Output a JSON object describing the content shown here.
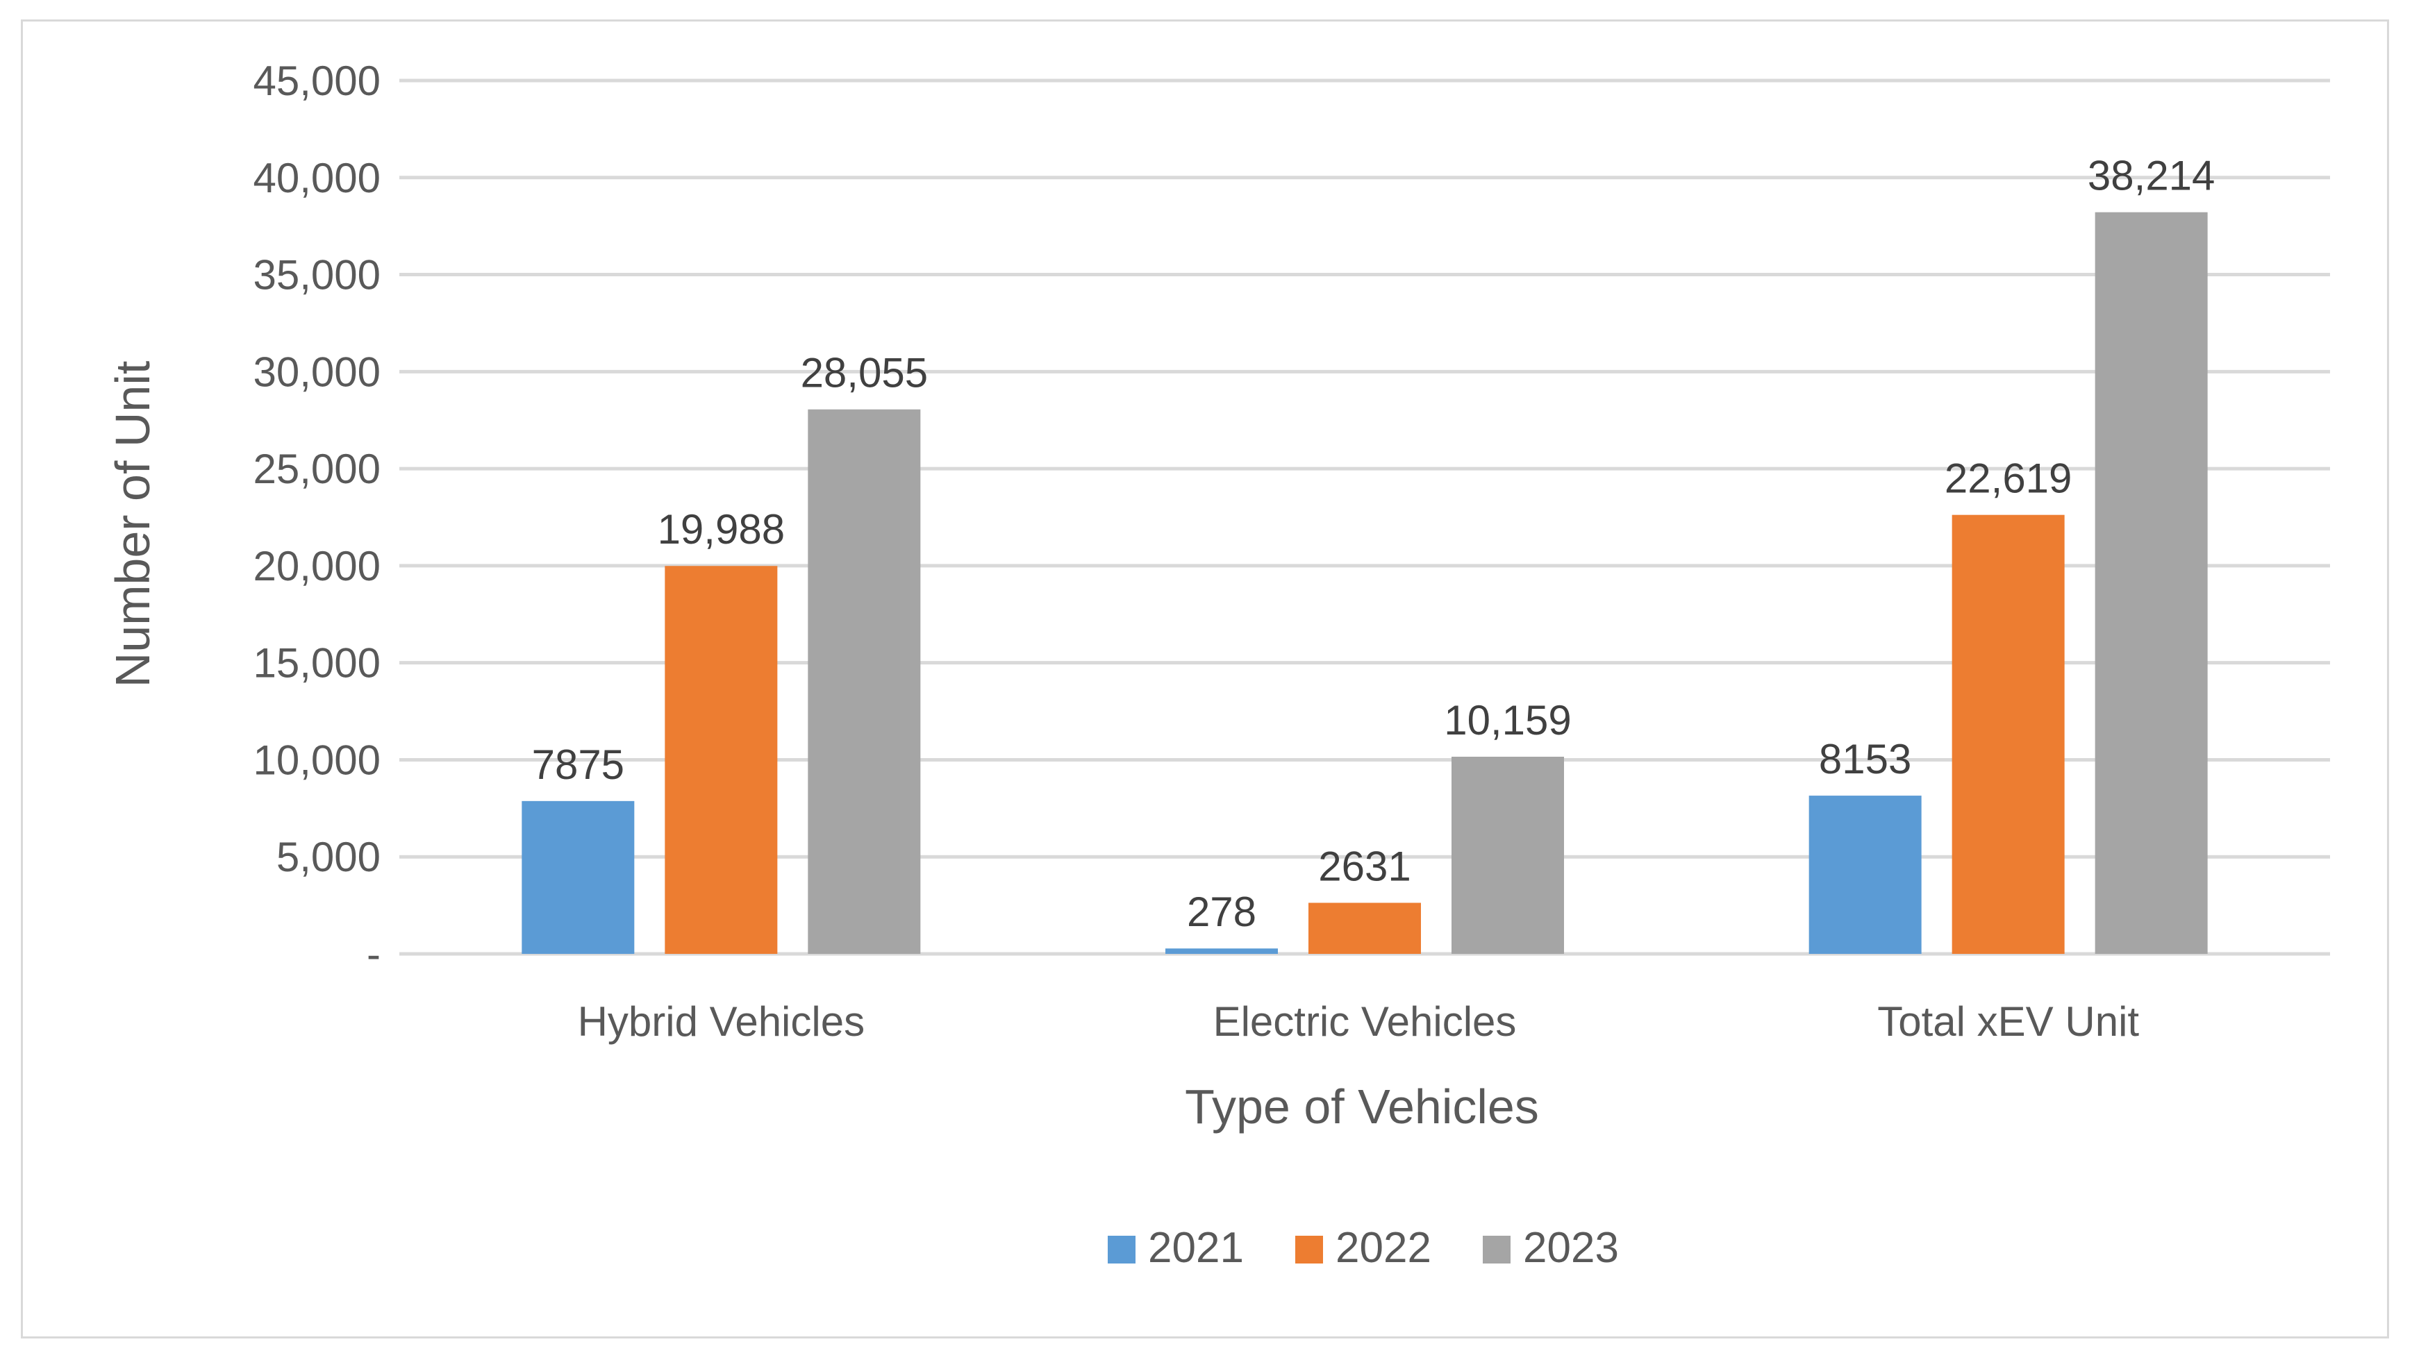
{
  "chart_data": {
    "type": "bar",
    "title": "",
    "xlabel": "Type of Vehicles",
    "ylabel": "Number of Unit",
    "ylim": [
      0,
      45000
    ],
    "yticks": [
      0,
      5000,
      10000,
      15000,
      20000,
      25000,
      30000,
      35000,
      40000,
      45000
    ],
    "ytick_labels": [
      "-",
      "5,000",
      "10,000",
      "15,000",
      "20,000",
      "25,000",
      "30,000",
      "35,000",
      "40,000",
      "45,000"
    ],
    "categories": [
      "Hybrid Vehicles",
      "Electric Vehicles",
      "Total xEV Unit"
    ],
    "series": [
      {
        "name": "2021",
        "color": "#5b9bd5",
        "values": [
          7875,
          278,
          8153
        ],
        "labels": [
          "7875",
          "278",
          "8153"
        ]
      },
      {
        "name": "2022",
        "color": "#ed7d31",
        "values": [
          19988,
          2631,
          22619
        ],
        "labels": [
          "19,988",
          "2631",
          "22,619"
        ]
      },
      {
        "name": "2023",
        "color": "#a5a5a5",
        "values": [
          28055,
          10159,
          38214
        ],
        "labels": [
          "28,055",
          "10,159",
          "38,214"
        ]
      }
    ],
    "grid": true,
    "legend_position": "bottom"
  }
}
